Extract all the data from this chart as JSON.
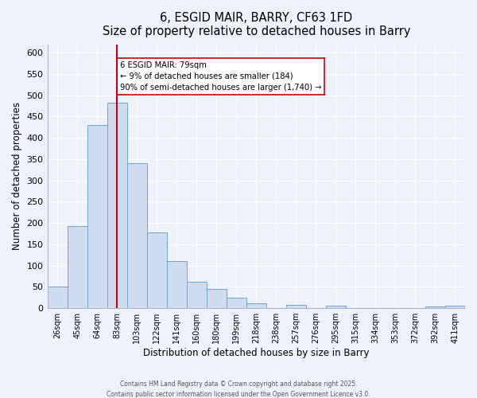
{
  "title1": "6, ESGID MAIR, BARRY, CF63 1FD",
  "title2": "Size of property relative to detached houses in Barry",
  "xlabel": "Distribution of detached houses by size in Barry",
  "ylabel": "Number of detached properties",
  "bin_labels": [
    "26sqm",
    "45sqm",
    "64sqm",
    "83sqm",
    "103sqm",
    "122sqm",
    "141sqm",
    "160sqm",
    "180sqm",
    "199sqm",
    "218sqm",
    "238sqm",
    "257sqm",
    "276sqm",
    "295sqm",
    "315sqm",
    "334sqm",
    "353sqm",
    "372sqm",
    "392sqm",
    "411sqm"
  ],
  "counts": [
    50,
    193,
    430,
    483,
    340,
    178,
    110,
    62,
    45,
    25,
    12,
    0,
    7,
    0,
    5,
    0,
    0,
    0,
    0,
    3,
    5
  ],
  "bar_facecolor": "#cfdcef",
  "bar_edgecolor": "#6ea6d0",
  "vline_x_idx": 3,
  "vline_color": "#cc0000",
  "annotation_text": "6 ESGID MAIR: 79sqm\n← 9% of detached houses are smaller (184)\n90% of semi-detached houses are larger (1,740) →",
  "annotation_bbox_facecolor": "white",
  "annotation_bbox_edgecolor": "#cc0000",
  "ylim": [
    0,
    620
  ],
  "yticks": [
    0,
    50,
    100,
    150,
    200,
    250,
    300,
    350,
    400,
    450,
    500,
    550,
    600
  ],
  "footer1": "Contains HM Land Registry data © Crown copyright and database right 2025.",
  "footer2": "Contains public sector information licensed under the Open Government Licence v3.0.",
  "bg_color": "#eef2fb",
  "plot_bg_color": "#eef2fb",
  "grid_color": "#ffffff",
  "spine_color": "#b0b8d0"
}
